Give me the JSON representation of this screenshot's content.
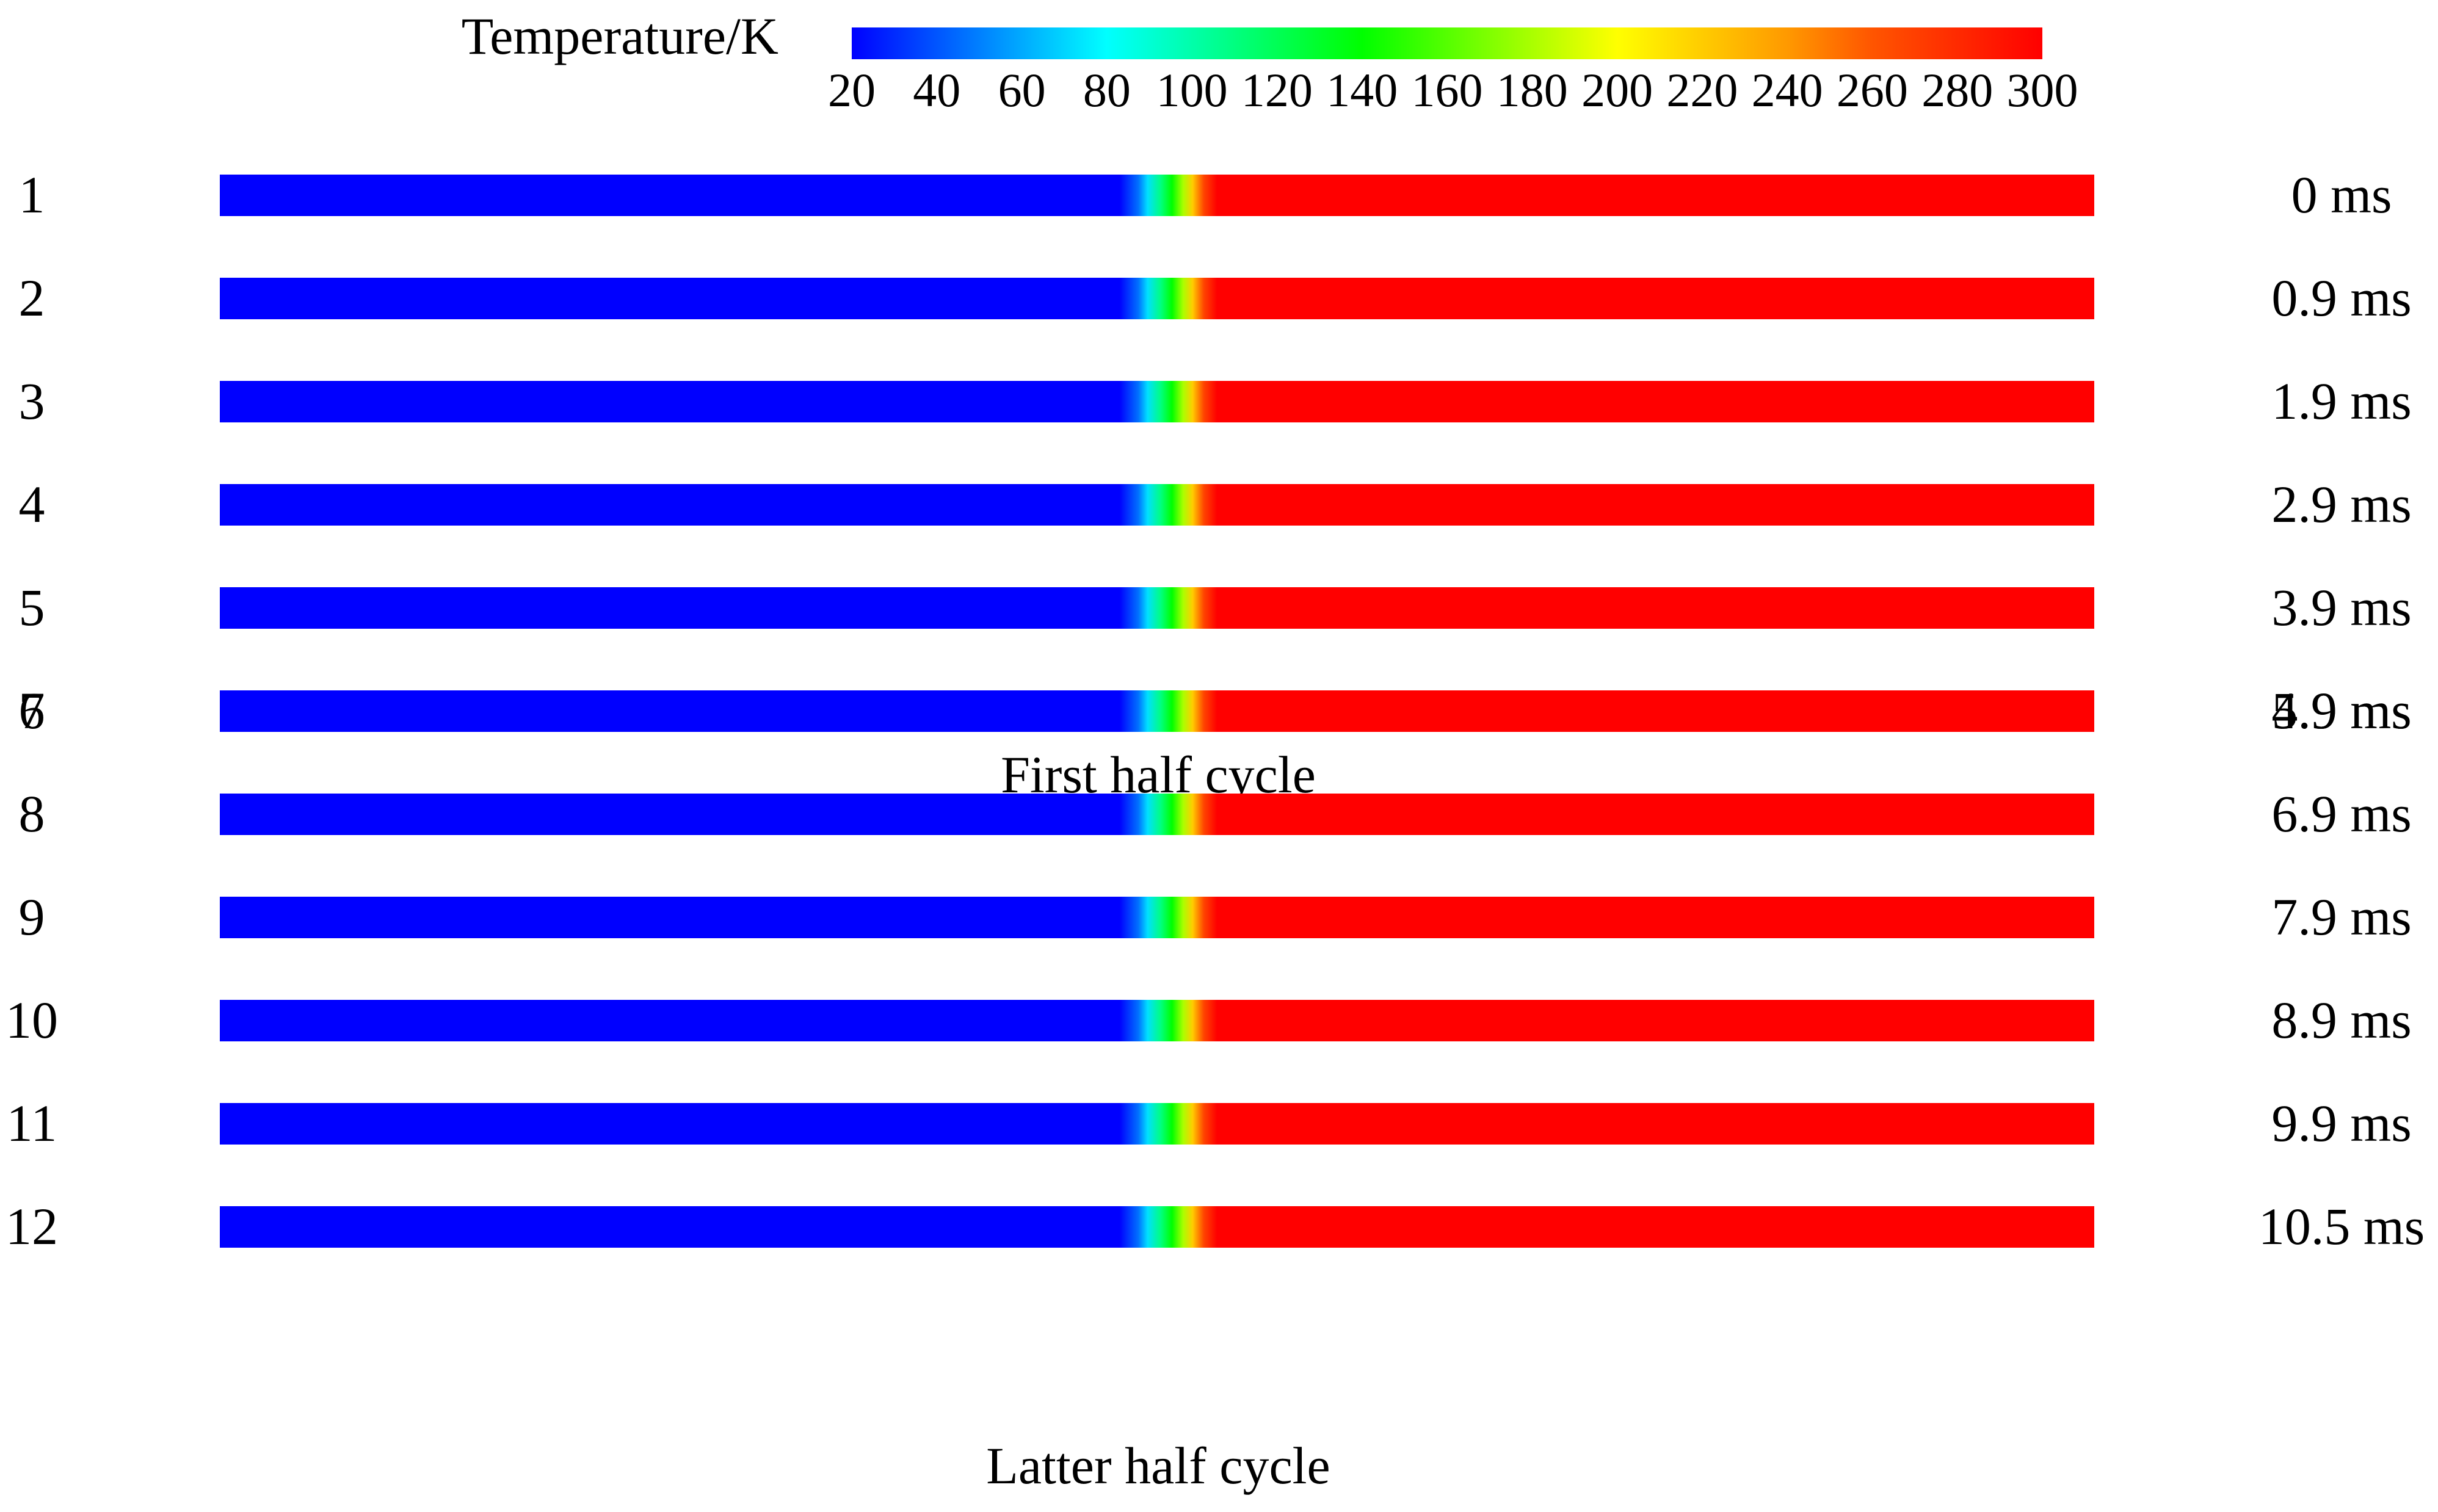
{
  "colorbar": {
    "title": "Temperature/K",
    "min": 20,
    "max": 300,
    "ticks": [
      20,
      40,
      60,
      80,
      100,
      120,
      140,
      160,
      180,
      200,
      220,
      240,
      260,
      280,
      300
    ],
    "tick_labels": [
      "20",
      "40",
      "60",
      "80",
      "100",
      "120",
      "140",
      "160",
      "180",
      "200",
      "220",
      "240",
      "260",
      "280",
      "300"
    ],
    "colors": [
      "#0000ff",
      "#0055ff",
      "#00aaff",
      "#00ffff",
      "#00ffaa",
      "#00ff55",
      "#00ff00",
      "#55ff00",
      "#aaff00",
      "#ffff00",
      "#ffcc00",
      "#ff9900",
      "#ff5500",
      "#ff2a00",
      "#ff0000"
    ]
  },
  "groups": [
    {
      "caption": "First half cycle",
      "rows": [
        {
          "index": "1",
          "time": "0 ms"
        },
        {
          "index": "2",
          "time": "0.9 ms"
        },
        {
          "index": "3",
          "time": "1.9 ms"
        },
        {
          "index": "4",
          "time": "2.9 ms"
        },
        {
          "index": "5",
          "time": "3.9 ms"
        },
        {
          "index": "6",
          "time": "4.9 ms"
        }
      ]
    },
    {
      "caption": "Latter half cycle",
      "rows": [
        {
          "index": "7",
          "time": "5.9 ms"
        },
        {
          "index": "8",
          "time": "6.9 ms"
        },
        {
          "index": "9",
          "time": "7.9 ms"
        },
        {
          "index": "10",
          "time": "8.9 ms"
        },
        {
          "index": "11",
          "time": "9.9 ms"
        },
        {
          "index": "12",
          "time": "10.5 ms"
        }
      ]
    }
  ]
}
